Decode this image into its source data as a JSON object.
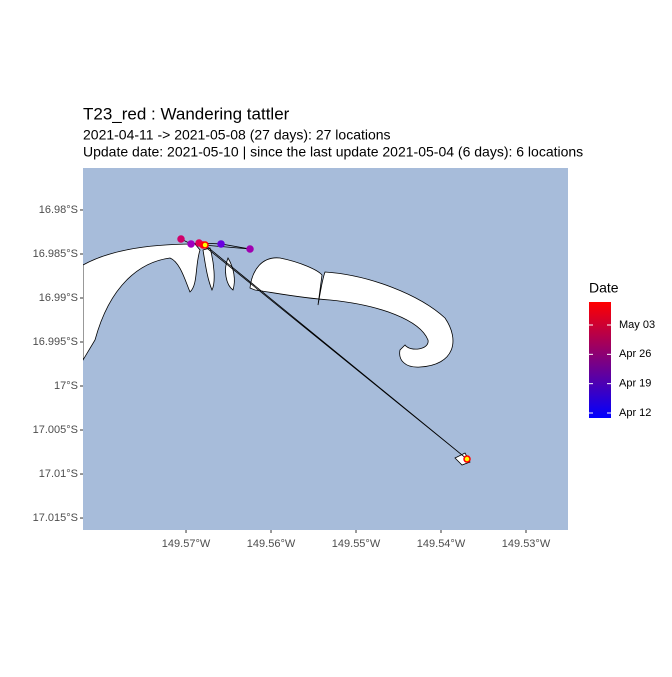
{
  "chart_data": {
    "type": "map",
    "title": "T23_red  :  Wandering tattler",
    "subtitle": [
      "2021-04-11 -> 2021-05-08 (27 days): 27 locations",
      "Update date: 2021-05-10 |  since the last update 2021-05-04 (6 days): 6 locations"
    ],
    "xlim": [
      -149.58212,
      -149.52506
    ],
    "ylim": [
      -17.01636,
      -16.97523
    ],
    "xticks": [
      {
        "value": -149.57,
        "label": "149.57°W"
      },
      {
        "value": -149.56,
        "label": "149.56°W"
      },
      {
        "value": -149.55,
        "label": "149.55°W"
      },
      {
        "value": -149.54,
        "label": "149.54°W"
      },
      {
        "value": -149.53,
        "label": "149.53°W"
      }
    ],
    "yticks": [
      {
        "value": -16.98,
        "label": "16.98°S"
      },
      {
        "value": -16.985,
        "label": "16.985°S"
      },
      {
        "value": -16.99,
        "label": "16.99°S"
      },
      {
        "value": -16.995,
        "label": "16.995°S"
      },
      {
        "value": -17.0,
        "label": "17°S"
      },
      {
        "value": -17.005,
        "label": "17.005°S"
      },
      {
        "value": -17.01,
        "label": "17.01°S"
      },
      {
        "value": -17.015,
        "label": "17.015°S"
      }
    ],
    "background": "#a7bcda",
    "track_color": "#000000",
    "x": [
      -149.57059,
      -149.56941,
      -149.56847,
      -149.56588,
      -149.56247,
      -149.568,
      -149.53694,
      -149.56776
    ],
    "y": [
      -16.9833,
      -16.98386,
      -16.98375,
      -16.98386,
      -16.98443,
      -16.98398,
      -17.0083,
      -16.98398
    ],
    "colors": [
      "#d0006a",
      "#a000c0",
      "#e0005a",
      "#6a00e0",
      "#a000b0",
      "#ff0020",
      "#ffff00",
      "#ffff00"
    ],
    "edge_colors": [
      "#d0006a",
      "#a000c0",
      "#e0005a",
      "#6a00e0",
      "#a000b0",
      "#ff0020",
      "#ff0000",
      "#ff0000"
    ],
    "legend": {
      "title": "Date",
      "ticks": [
        "May 03",
        "Apr 26",
        "Apr 19",
        "Apr 12"
      ],
      "colors": [
        "#ff0000",
        "#0000ff"
      ]
    }
  }
}
